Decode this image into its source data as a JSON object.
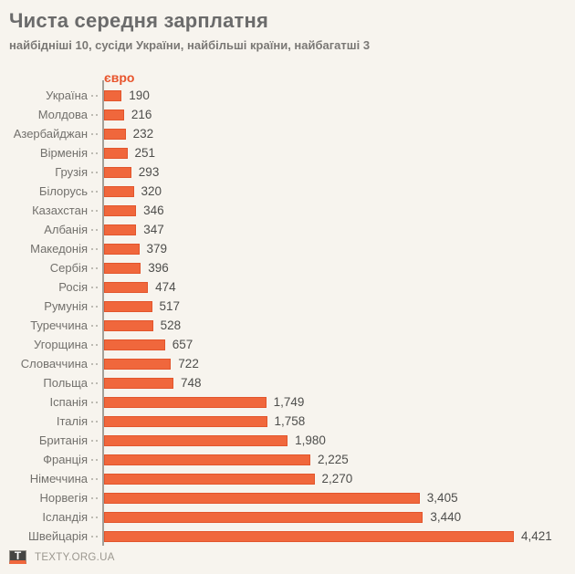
{
  "title": "Чиста середня зарплатня",
  "subtitle": "найбідніші 10, сусіди України, найбільші країни, найбагатші 3",
  "footer": {
    "logo_letter": "T",
    "site": "TEXTY.ORG.UA"
  },
  "colors": {
    "background": "#F7F4EE",
    "bar_fill": "#F0673C",
    "bar_border": "#E2552C",
    "axis": "#A3A099",
    "unit_label": "#E8542C"
  },
  "chart_data": {
    "type": "bar",
    "orientation": "horizontal",
    "unit_label": "євро",
    "xlim": [
      0,
      4500
    ],
    "grid": false,
    "legend": false,
    "categories": [
      "Україна",
      "Молдова",
      "Азербайджан",
      "Вірменія",
      "Грузія",
      "Білорусь",
      "Казахстан",
      "Албанія",
      "Македонія",
      "Сербія",
      "Росія",
      "Румунія",
      "Туреччина",
      "Угорщина",
      "Словаччина",
      "Польща",
      "Іспанія",
      "Італія",
      "Британія",
      "Франція",
      "Німеччина",
      "Норвегія",
      "Ісландія",
      "Швейцарія"
    ],
    "values": [
      190,
      216,
      232,
      251,
      293,
      320,
      346,
      347,
      379,
      396,
      474,
      517,
      528,
      657,
      722,
      748,
      1749,
      1758,
      1980,
      2225,
      2270,
      3405,
      3440,
      4421
    ],
    "value_labels": [
      "190",
      "216",
      "232",
      "251",
      "293",
      "320",
      "346",
      "347",
      "379",
      "396",
      "474",
      "517",
      "528",
      "657",
      "722",
      "748",
      "1,749",
      "1,758",
      "1,980",
      "2,225",
      "2,270",
      "3,405",
      "3,440",
      "4,421"
    ]
  }
}
